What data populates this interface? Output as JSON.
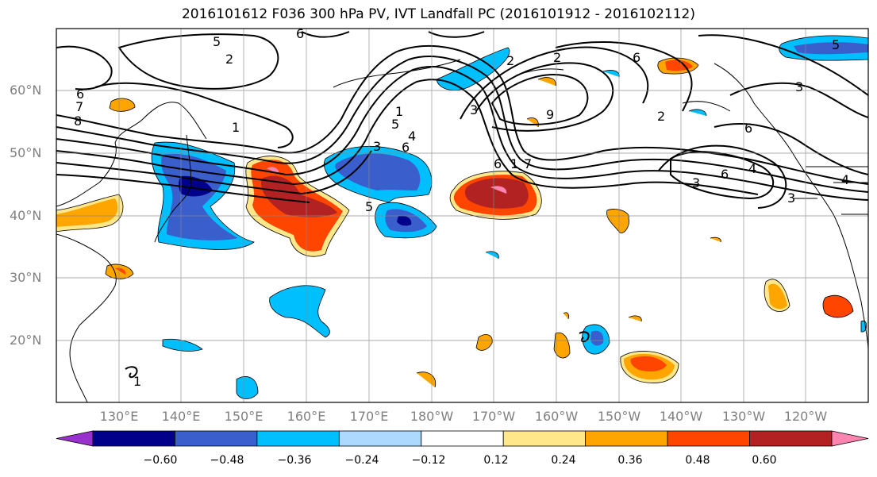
{
  "title": "2016101612 F036 300 hPa PV, IVT Landfall PC (2016101912 - 2016102112)",
  "lat_labels": [
    "60°N",
    "50°N",
    "40°N",
    "30°N",
    "20°N"
  ],
  "lon_labels": [
    "130°E",
    "140°E",
    "150°E",
    "160°E",
    "170°E",
    "180°W",
    "170°W",
    "160°W",
    "150°W",
    "140°W",
    "130°W",
    "120°W"
  ],
  "colorbar": {
    "colors": [
      "#9932CC",
      "#00008B",
      "#3A5FCD",
      "#00BFFF",
      "#ADD8FF",
      "#FFFFFF",
      "#FFE78A",
      "#FFA500",
      "#FF4500",
      "#B22222",
      "#FF85B0"
    ],
    "tick_labels": [
      "−0.60",
      "−0.48",
      "−0.36",
      "−0.24",
      "−0.12",
      "0.12",
      "0.24",
      "0.36",
      "0.48",
      "0.60"
    ]
  },
  "contour_labels": [
    "5",
    "6",
    "2",
    "6",
    "7",
    "8",
    "1",
    "1",
    "5",
    "6",
    "4",
    "3",
    "5",
    "1",
    "6",
    "7",
    "2",
    "6",
    "2",
    "9",
    "6",
    "6",
    "4",
    "5",
    "3",
    "3",
    "4",
    "3",
    "2",
    "3",
    "1"
  ]
}
